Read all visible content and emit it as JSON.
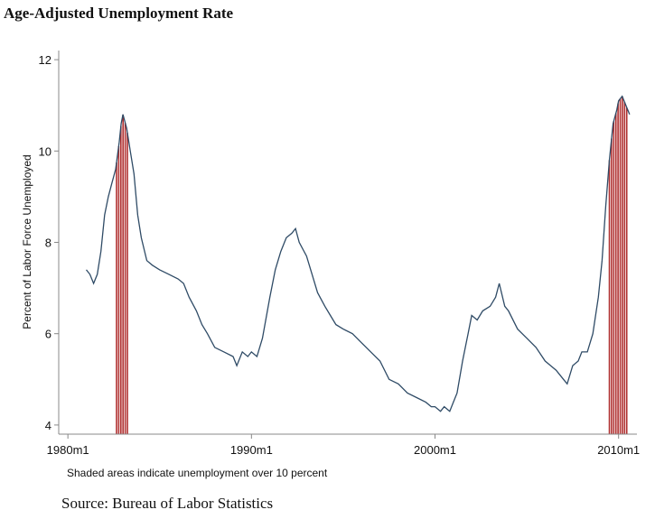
{
  "title": "Age-Adjusted Unemployment Rate",
  "source": "Source: Bureau of Labor Statistics",
  "chart_data": {
    "type": "line",
    "ylabel": "Percent of Labor Force Unemployed",
    "xlabel": "",
    "note": "Shaded areas indicate unemployment over 10 percent",
    "xlim": [
      1979.5,
      2011.0
    ],
    "ylim": [
      3.8,
      12.2
    ],
    "xticks": [
      {
        "value": 1980,
        "label": "1980m1"
      },
      {
        "value": 1990,
        "label": "1990m1"
      },
      {
        "value": 2000,
        "label": "2000m1"
      },
      {
        "value": 2010,
        "label": "2010m1"
      }
    ],
    "yticks": [
      4,
      6,
      8,
      10,
      12
    ],
    "grid": false,
    "line_color": "#2f4b66",
    "shade_color": "#b03030",
    "shaded_regions": [
      [
        1982.65,
        1983.25
      ],
      [
        2009.5,
        2010.55
      ]
    ],
    "series": [
      {
        "x": [
          1981.0,
          1981.2,
          1981.4,
          1981.6,
          1981.8,
          1982.0,
          1982.2,
          1982.4,
          1982.6,
          1982.8,
          1982.9,
          1983.0,
          1983.2,
          1983.4,
          1983.6,
          1983.8,
          1984.0,
          1984.3,
          1984.6,
          1985.0,
          1985.5,
          1986.0,
          1986.3,
          1986.6,
          1987.0,
          1987.3,
          1987.6,
          1988.0,
          1988.5,
          1989.0,
          1989.2,
          1989.5,
          1989.8,
          1990.0,
          1990.3,
          1990.6,
          1991.0,
          1991.3,
          1991.6,
          1991.9,
          1992.2,
          1992.4,
          1992.6,
          1993.0,
          1993.3,
          1993.6,
          1994.0,
          1994.3,
          1994.6,
          1995.0,
          1995.5,
          1996.0,
          1996.5,
          1997.0,
          1997.5,
          1998.0,
          1998.5,
          1999.0,
          1999.5,
          1999.8,
          2000.0,
          2000.3,
          2000.5,
          2000.8,
          2001.0,
          2001.2,
          2001.5,
          2001.8,
          2002.0,
          2002.3,
          2002.6,
          2003.0,
          2003.3,
          2003.5,
          2003.8,
          2004.0,
          2004.5,
          2005.0,
          2005.5,
          2006.0,
          2006.3,
          2006.6,
          2007.0,
          2007.2,
          2007.5,
          2007.8,
          2008.0,
          2008.3,
          2008.6,
          2008.9,
          2009.1,
          2009.3,
          2009.5,
          2009.7,
          2009.9,
          2010.0,
          2010.2,
          2010.4,
          2010.6
        ],
        "y": [
          7.4,
          7.3,
          7.1,
          7.3,
          7.8,
          8.6,
          9.0,
          9.3,
          9.6,
          10.2,
          10.6,
          10.8,
          10.5,
          10.0,
          9.5,
          8.6,
          8.1,
          7.6,
          7.5,
          7.4,
          7.3,
          7.2,
          7.1,
          6.8,
          6.5,
          6.2,
          6.0,
          5.7,
          5.6,
          5.5,
          5.3,
          5.6,
          5.5,
          5.6,
          5.5,
          5.9,
          6.8,
          7.4,
          7.8,
          8.1,
          8.2,
          8.3,
          8.0,
          7.7,
          7.3,
          6.9,
          6.6,
          6.4,
          6.2,
          6.1,
          6.0,
          5.8,
          5.6,
          5.4,
          5.0,
          4.9,
          4.7,
          4.6,
          4.5,
          4.4,
          4.4,
          4.3,
          4.4,
          4.3,
          4.5,
          4.7,
          5.4,
          6.0,
          6.4,
          6.3,
          6.5,
          6.6,
          6.8,
          7.1,
          6.6,
          6.5,
          6.1,
          5.9,
          5.7,
          5.4,
          5.3,
          5.2,
          5.0,
          4.9,
          5.3,
          5.4,
          5.6,
          5.6,
          6.0,
          6.8,
          7.6,
          8.8,
          9.8,
          10.6,
          10.9,
          11.1,
          11.2,
          11.0,
          10.8
        ]
      }
    ]
  }
}
